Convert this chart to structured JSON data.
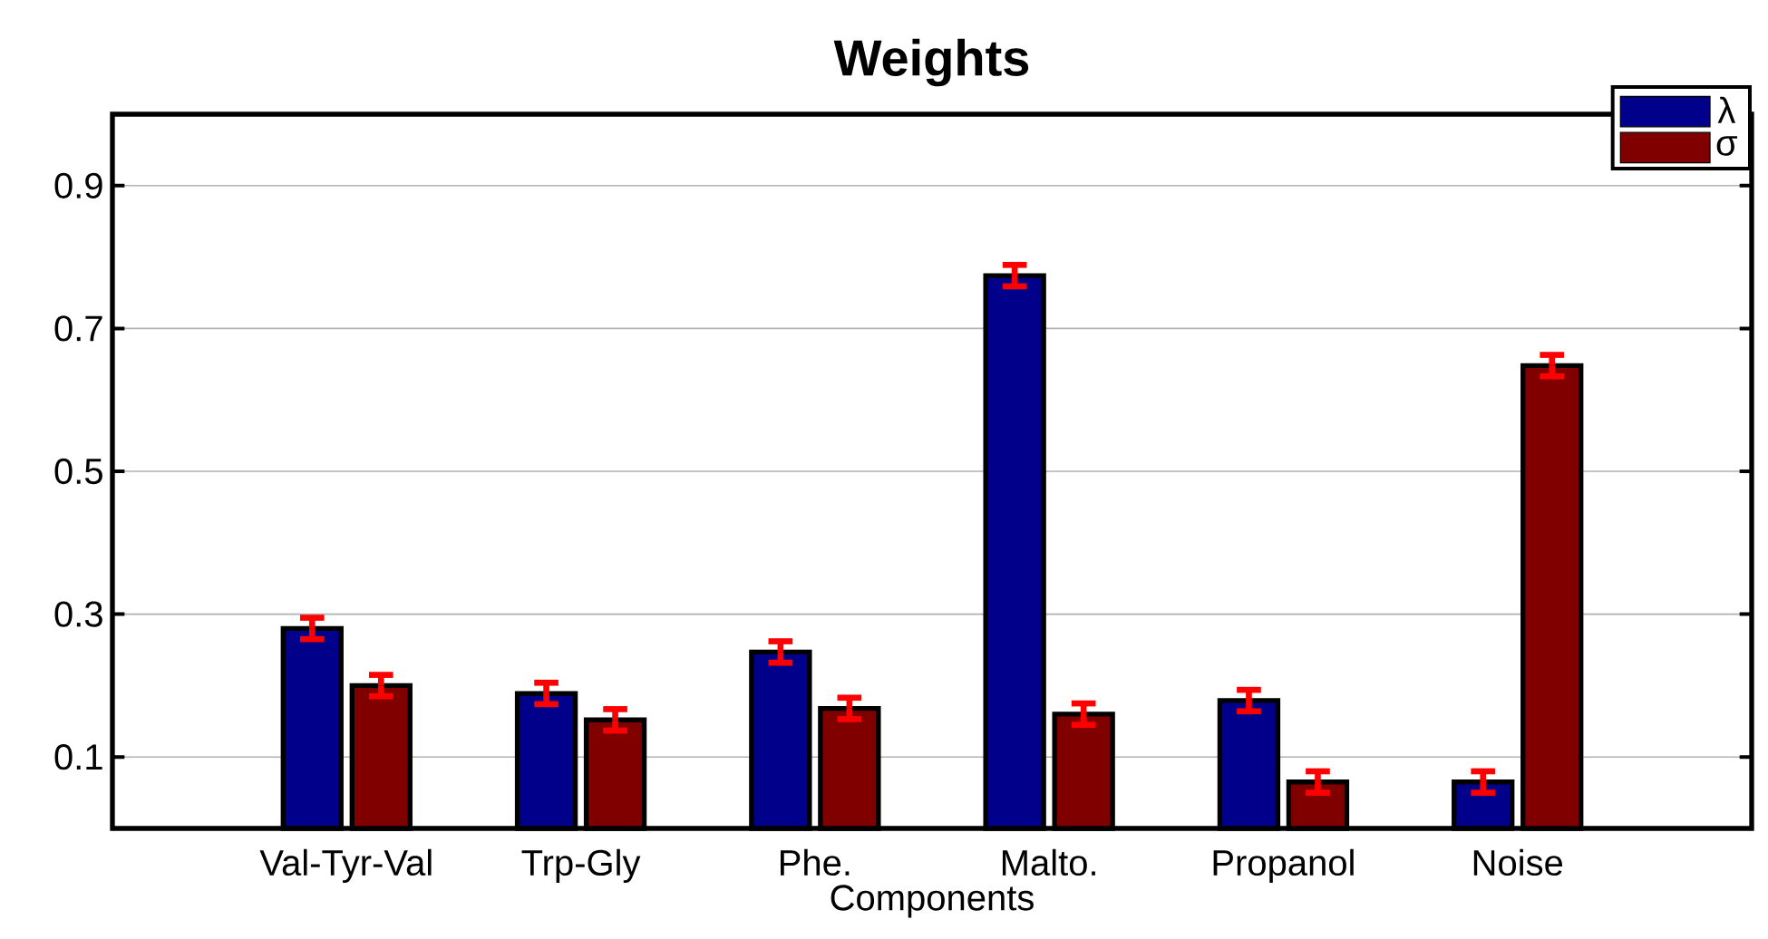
{
  "chart_data": {
    "type": "bar",
    "title": "Weights",
    "xlabel": "Components",
    "categories": [
      "Val-Tyr-Val",
      "Trp-Gly",
      "Phe.",
      "Malto.",
      "Propanol",
      "Noise"
    ],
    "series": [
      {
        "name": "λ",
        "color": "#00008b",
        "values": [
          0.28,
          0.189,
          0.247,
          0.774,
          0.179,
          0.065
        ],
        "errors": [
          0.015,
          0.015,
          0.015,
          0.015,
          0.015,
          0.015
        ]
      },
      {
        "name": "σ",
        "color": "#800000",
        "values": [
          0.2,
          0.152,
          0.168,
          0.16,
          0.065,
          0.648
        ],
        "errors": [
          0.015,
          0.015,
          0.015,
          0.015,
          0.015,
          0.015
        ]
      }
    ],
    "ylim": [
      0,
      1.0
    ],
    "yticks": [
      0.1,
      0.3,
      0.5,
      0.7,
      0.9
    ],
    "grid": "y",
    "legend": "top right"
  }
}
